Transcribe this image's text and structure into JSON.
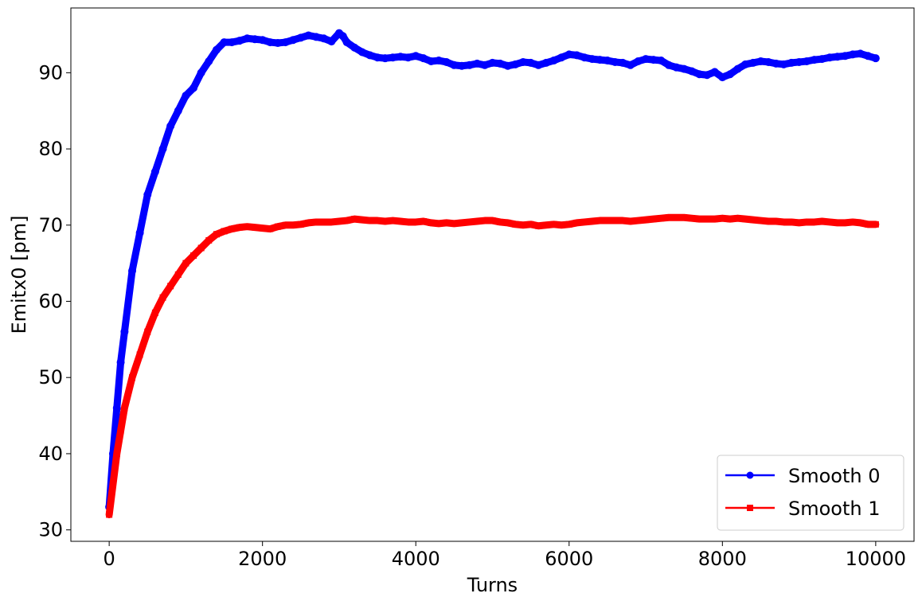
{
  "chart_data": {
    "type": "line",
    "title": "",
    "xlabel": "Turns",
    "ylabel": "Emitx0 [pm]",
    "xlim": [
      -500,
      10500
    ],
    "ylim": [
      28.5,
      98.5
    ],
    "xticks": [
      0,
      2000,
      4000,
      6000,
      8000,
      10000
    ],
    "yticks": [
      30,
      40,
      50,
      60,
      70,
      80,
      90
    ],
    "grid": false,
    "legend_position": "bottom-right",
    "series": [
      {
        "name": "Smooth 0",
        "color": "#0000ff",
        "marker": "circle",
        "x": [
          0,
          50,
          100,
          150,
          200,
          300,
          400,
          500,
          600,
          700,
          800,
          900,
          1000,
          1100,
          1200,
          1300,
          1400,
          1500,
          1600,
          1700,
          1800,
          1900,
          2000,
          2100,
          2200,
          2300,
          2400,
          2500,
          2600,
          2700,
          2800,
          2900,
          3000,
          3050,
          3100,
          3200,
          3300,
          3400,
          3500,
          3600,
          3700,
          3800,
          3900,
          4000,
          4100,
          4200,
          4300,
          4400,
          4500,
          4600,
          4700,
          4800,
          4900,
          5000,
          5100,
          5200,
          5300,
          5400,
          5500,
          5600,
          5700,
          5800,
          5900,
          6000,
          6100,
          6200,
          6300,
          6400,
          6500,
          6600,
          6700,
          6800,
          6900,
          7000,
          7100,
          7200,
          7300,
          7400,
          7500,
          7600,
          7700,
          7800,
          7900,
          8000,
          8100,
          8200,
          8300,
          8400,
          8500,
          8600,
          8700,
          8800,
          8900,
          9000,
          9100,
          9200,
          9300,
          9400,
          9500,
          9600,
          9700,
          9800,
          9900,
          10000
        ],
        "y": [
          33,
          40,
          46,
          52,
          56,
          64,
          69,
          74,
          77,
          80,
          83,
          85,
          87,
          88,
          90,
          91.5,
          93,
          94,
          94,
          94.2,
          94.5,
          94.4,
          94.3,
          94,
          93.9,
          94,
          94.3,
          94.6,
          94.9,
          94.7,
          94.5,
          94.1,
          95.2,
          94.8,
          94,
          93.3,
          92.7,
          92.3,
          92,
          91.9,
          92,
          92.1,
          92,
          92.2,
          91.9,
          91.5,
          91.6,
          91.4,
          91,
          90.9,
          91,
          91.2,
          91,
          91.3,
          91.2,
          90.9,
          91.1,
          91.4,
          91.3,
          91,
          91.3,
          91.6,
          92,
          92.4,
          92.3,
          92,
          91.8,
          91.7,
          91.6,
          91.4,
          91.3,
          91,
          91.5,
          91.8,
          91.7,
          91.6,
          91,
          90.7,
          90.5,
          90.2,
          89.8,
          89.7,
          90.1,
          89.4,
          89.8,
          90.5,
          91.1,
          91.3,
          91.5,
          91.4,
          91.2,
          91.1,
          91.3,
          91.4,
          91.5,
          91.7,
          91.8,
          92,
          92.1,
          92.2,
          92.4,
          92.5,
          92.2,
          91.9
        ]
      },
      {
        "name": "Smooth 1",
        "color": "#ff0000",
        "marker": "square",
        "x": [
          0,
          50,
          100,
          150,
          200,
          300,
          400,
          500,
          600,
          700,
          800,
          900,
          1000,
          1100,
          1200,
          1300,
          1400,
          1500,
          1600,
          1700,
          1800,
          1900,
          2000,
          2100,
          2200,
          2300,
          2400,
          2500,
          2600,
          2700,
          2800,
          2900,
          3000,
          3100,
          3200,
          3300,
          3400,
          3500,
          3600,
          3700,
          3800,
          3900,
          4000,
          4100,
          4200,
          4300,
          4400,
          4500,
          4600,
          4700,
          4800,
          4900,
          5000,
          5100,
          5200,
          5300,
          5400,
          5500,
          5600,
          5700,
          5800,
          5900,
          6000,
          6100,
          6200,
          6300,
          6400,
          6500,
          6600,
          6700,
          6800,
          6900,
          7000,
          7100,
          7200,
          7300,
          7400,
          7500,
          7600,
          7700,
          7800,
          7900,
          8000,
          8100,
          8200,
          8300,
          8400,
          8500,
          8600,
          8700,
          8800,
          8900,
          9000,
          9100,
          9200,
          9300,
          9400,
          9500,
          9600,
          9700,
          9800,
          9900,
          10000
        ],
        "y": [
          32,
          36,
          40,
          43,
          46,
          50,
          53,
          56,
          58.5,
          60.5,
          62,
          63.5,
          65,
          66,
          67,
          68,
          68.8,
          69.2,
          69.5,
          69.7,
          69.8,
          69.7,
          69.6,
          69.5,
          69.8,
          70,
          70,
          70.1,
          70.3,
          70.4,
          70.4,
          70.4,
          70.5,
          70.6,
          70.8,
          70.7,
          70.6,
          70.6,
          70.5,
          70.6,
          70.5,
          70.4,
          70.4,
          70.5,
          70.3,
          70.2,
          70.3,
          70.2,
          70.3,
          70.4,
          70.5,
          70.6,
          70.6,
          70.4,
          70.3,
          70.1,
          70,
          70.1,
          69.9,
          70,
          70.1,
          70,
          70.1,
          70.3,
          70.4,
          70.5,
          70.6,
          70.6,
          70.6,
          70.6,
          70.5,
          70.6,
          70.7,
          70.8,
          70.9,
          71,
          71,
          71,
          70.9,
          70.8,
          70.8,
          70.8,
          70.9,
          70.8,
          70.9,
          70.8,
          70.7,
          70.6,
          70.5,
          70.5,
          70.4,
          70.4,
          70.3,
          70.4,
          70.4,
          70.5,
          70.4,
          70.3,
          70.3,
          70.4,
          70.3,
          70.1,
          70.1
        ]
      }
    ]
  }
}
